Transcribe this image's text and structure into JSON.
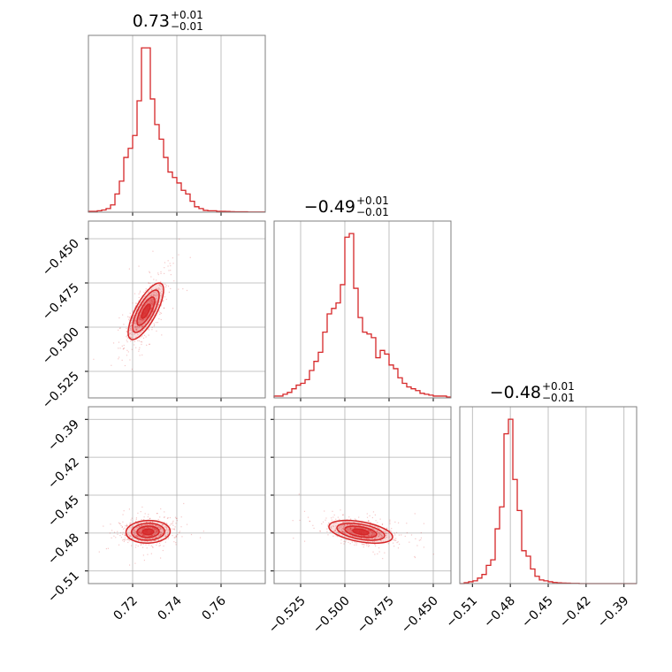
{
  "chart_data": {
    "type": "corner",
    "color": "#d62728",
    "parameters": [
      {
        "title_value": "0.73",
        "title_plus": "+0.01",
        "title_minus": "−0.01",
        "range": [
          0.7,
          0.78
        ],
        "ticks": [
          0.72,
          0.74,
          0.76
        ],
        "tick_labels": [
          "0.72",
          "0.74",
          "0.76"
        ],
        "hist_x": [
          0.7,
          0.702,
          0.704,
          0.706,
          0.708,
          0.71,
          0.712,
          0.714,
          0.716,
          0.718,
          0.72,
          0.722,
          0.724,
          0.726,
          0.728,
          0.73,
          0.732,
          0.734,
          0.736,
          0.738,
          0.74,
          0.742,
          0.744,
          0.746,
          0.748,
          0.75,
          0.752,
          0.754,
          0.756,
          0.758,
          0.76,
          0.762,
          0.764,
          0.766,
          0.768,
          0.77,
          0.772,
          0.774,
          0.776,
          0.778,
          0.78
        ],
        "hist_y": [
          0.005,
          0.005,
          0.008,
          0.012,
          0.02,
          0.04,
          0.1,
          0.17,
          0.3,
          0.35,
          0.42,
          0.61,
          0.9,
          0.9,
          0.62,
          0.48,
          0.4,
          0.3,
          0.22,
          0.19,
          0.16,
          0.12,
          0.1,
          0.06,
          0.03,
          0.02,
          0.01,
          0.008,
          0.008,
          0.005,
          0.005,
          0.004,
          0.003,
          0.002,
          0.002,
          0.002,
          0.001,
          0.001,
          0.001,
          0.001
        ]
      },
      {
        "title_value": "−0.49",
        "title_plus": "+0.01",
        "title_minus": "−0.01",
        "range": [
          -0.54,
          -0.44
        ],
        "ticks": [
          -0.525,
          -0.5,
          -0.475,
          -0.45
        ],
        "tick_labels": [
          "−0.525",
          "−0.500",
          "−0.475",
          "−0.450"
        ],
        "hist_x": [
          -0.54,
          -0.5375,
          -0.535,
          -0.5325,
          -0.53,
          -0.5275,
          -0.525,
          -0.5225,
          -0.52,
          -0.5175,
          -0.515,
          -0.5125,
          -0.51,
          -0.5075,
          -0.505,
          -0.5025,
          -0.5,
          -0.4975,
          -0.495,
          -0.4925,
          -0.49,
          -0.4875,
          -0.485,
          -0.4825,
          -0.48,
          -0.4775,
          -0.475,
          -0.4725,
          -0.47,
          -0.4675,
          -0.465,
          -0.4625,
          -0.46,
          -0.4575,
          -0.455,
          -0.4525,
          -0.45,
          -0.4475,
          -0.445,
          -0.4425,
          -0.44
        ],
        "hist_y": [
          0.01,
          0.01,
          0.02,
          0.03,
          0.05,
          0.07,
          0.08,
          0.1,
          0.15,
          0.2,
          0.25,
          0.36,
          0.46,
          0.49,
          0.52,
          0.62,
          0.88,
          0.9,
          0.6,
          0.44,
          0.36,
          0.35,
          0.33,
          0.22,
          0.26,
          0.24,
          0.18,
          0.16,
          0.11,
          0.08,
          0.06,
          0.05,
          0.04,
          0.025,
          0.02,
          0.015,
          0.01,
          0.01,
          0.01,
          0.005
        ]
      },
      {
        "title_value": "−0.48",
        "title_plus": "+0.01",
        "title_minus": "−0.01",
        "range": [
          -0.52,
          -0.38
        ],
        "ticks": [
          -0.51,
          -0.48,
          -0.45,
          -0.42,
          -0.39
        ],
        "tick_labels": [
          "−0.51",
          "−0.48",
          "−0.45",
          "−0.42",
          "−0.39"
        ],
        "hist_x": [
          -0.52,
          -0.5165,
          -0.513,
          -0.5095,
          -0.506,
          -0.5025,
          -0.499,
          -0.4955,
          -0.492,
          -0.4885,
          -0.485,
          -0.4815,
          -0.478,
          -0.4745,
          -0.471,
          -0.4675,
          -0.464,
          -0.4605,
          -0.457,
          -0.4535,
          -0.45,
          -0.4465,
          -0.443,
          -0.4395,
          -0.436,
          -0.4325,
          -0.429,
          -0.4255,
          -0.422,
          -0.4185,
          -0.415,
          -0.4115,
          -0.408,
          -0.4045,
          -0.401,
          -0.3975,
          -0.394,
          -0.3905,
          -0.387,
          -0.3835,
          -0.38
        ],
        "hist_y": [
          0.0,
          0.005,
          0.01,
          0.015,
          0.03,
          0.05,
          0.1,
          0.13,
          0.3,
          0.42,
          0.82,
          0.9,
          0.57,
          0.4,
          0.18,
          0.15,
          0.08,
          0.04,
          0.02,
          0.015,
          0.01,
          0.006,
          0.004,
          0.003,
          0.002,
          0.001,
          0.001,
          0.0,
          0.0,
          0.0,
          0.0,
          0.0,
          0.0,
          0.0,
          0.0,
          0.0,
          0.0,
          0.0,
          0.0,
          0.0
        ]
      }
    ],
    "pairs": [
      {
        "x_param": 0,
        "y_param": 1,
        "center": [
          0.726,
          -0.491
        ],
        "sd": [
          0.004,
          0.008
        ],
        "rho": 0.75
      },
      {
        "x_param": 0,
        "y_param": 2,
        "center": [
          0.727,
          -0.479
        ],
        "sd": [
          0.005,
          0.0045
        ],
        "rho": 0.05
      },
      {
        "x_param": 1,
        "y_param": 2,
        "center": [
          -0.491,
          -0.479
        ],
        "sd": [
          0.009,
          0.0045
        ],
        "rho": -0.45
      }
    ],
    "grid": true,
    "levels_sigma": [
      0.5,
      1.0,
      1.5,
      2.0
    ]
  }
}
